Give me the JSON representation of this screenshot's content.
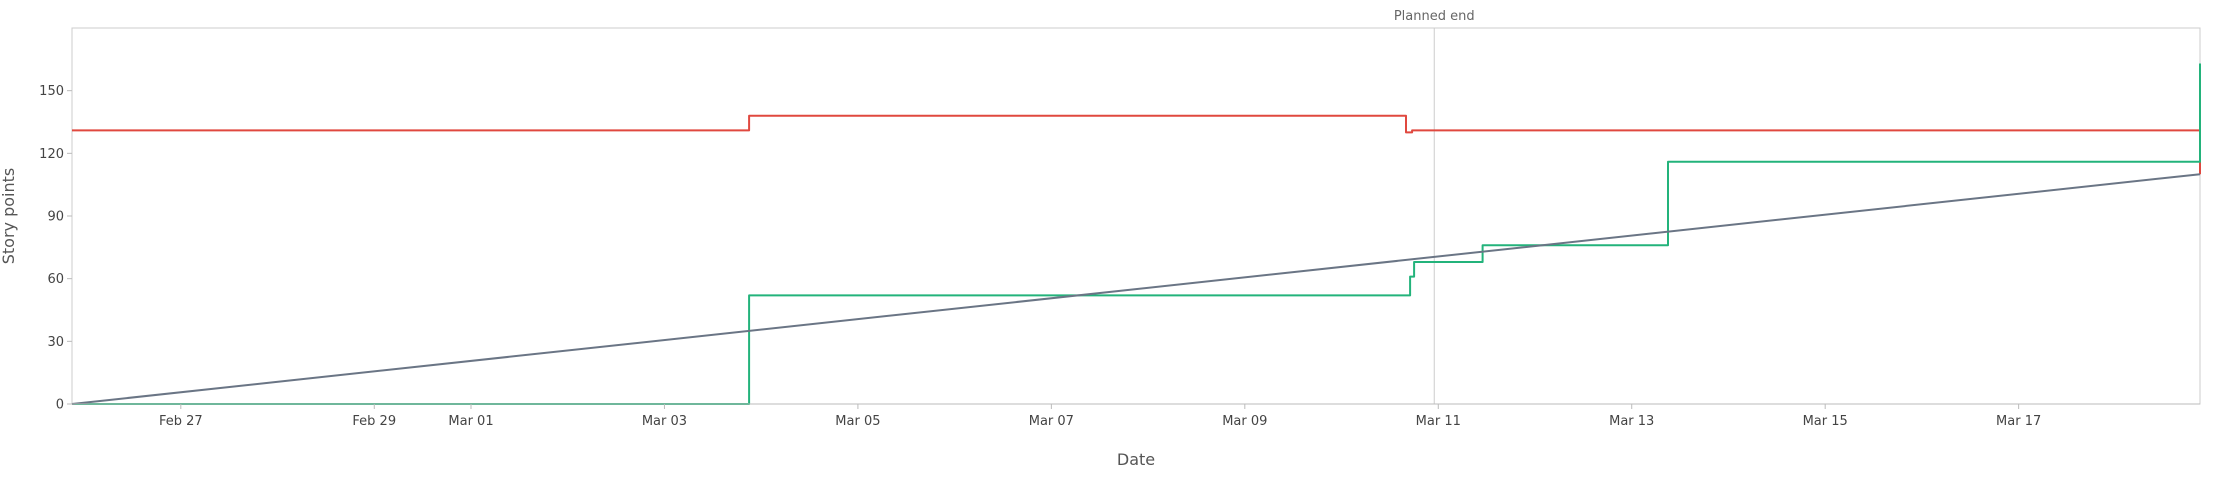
{
  "chart_data": {
    "type": "line",
    "title": "",
    "xlabel": "Date",
    "ylabel": "Story points",
    "x_tick_labels": [
      "Feb 27",
      "Feb 29",
      "Mar 01",
      "Mar 03",
      "Mar 05",
      "Mar 07",
      "Mar 09",
      "Mar 11",
      "Mar 13",
      "Mar 15",
      "Mar 17"
    ],
    "x_ticks": [
      "2024-02-27",
      "2024-02-29",
      "2024-03-01",
      "2024-03-03",
      "2024-03-05",
      "2024-03-07",
      "2024-03-09",
      "2024-03-11",
      "2024-03-13",
      "2024-03-15",
      "2024-03-17"
    ],
    "xlim": [
      "2024-02-25T21:00",
      "2024-03-18T21:00"
    ],
    "y_ticks": [
      0,
      30,
      60,
      90,
      120,
      150
    ],
    "ylim": [
      0,
      180
    ],
    "grid": false,
    "annotations": [
      {
        "text": "Planned end",
        "x": "2024-03-10T23:00"
      }
    ],
    "series": [
      {
        "color": "#e0483f",
        "step": true,
        "points": [
          [
            "2024-02-25T21:00",
            131
          ],
          [
            "2024-03-03T21:00",
            131
          ],
          [
            "2024-03-03T21:00",
            138
          ],
          [
            "2024-03-10T16:00",
            138
          ],
          [
            "2024-03-10T16:00",
            130
          ],
          [
            "2024-03-10T17:30",
            130
          ],
          [
            "2024-03-10T17:30",
            131
          ],
          [
            "2024-03-18T21:00",
            131
          ],
          [
            "2024-03-18T21:00",
            110
          ]
        ]
      },
      {
        "color": "#23b37b",
        "step": true,
        "points": [
          [
            "2024-02-25T21:00",
            0
          ],
          [
            "2024-03-03T21:00",
            0
          ],
          [
            "2024-03-03T21:00",
            52
          ],
          [
            "2024-03-10T17:00",
            52
          ],
          [
            "2024-03-10T17:00",
            61
          ],
          [
            "2024-03-10T18:00",
            61
          ],
          [
            "2024-03-10T18:00",
            68
          ],
          [
            "2024-03-11T11:00",
            68
          ],
          [
            "2024-03-11T11:00",
            76
          ],
          [
            "2024-03-13T09:00",
            76
          ],
          [
            "2024-03-13T09:00",
            116
          ],
          [
            "2024-03-18T21:00",
            116
          ],
          [
            "2024-03-18T21:00",
            163
          ]
        ]
      },
      {
        "color": "#6a7585",
        "step": false,
        "points": [
          [
            "2024-02-25T21:00",
            0
          ],
          [
            "2024-03-18T21:00",
            110
          ]
        ]
      }
    ]
  }
}
